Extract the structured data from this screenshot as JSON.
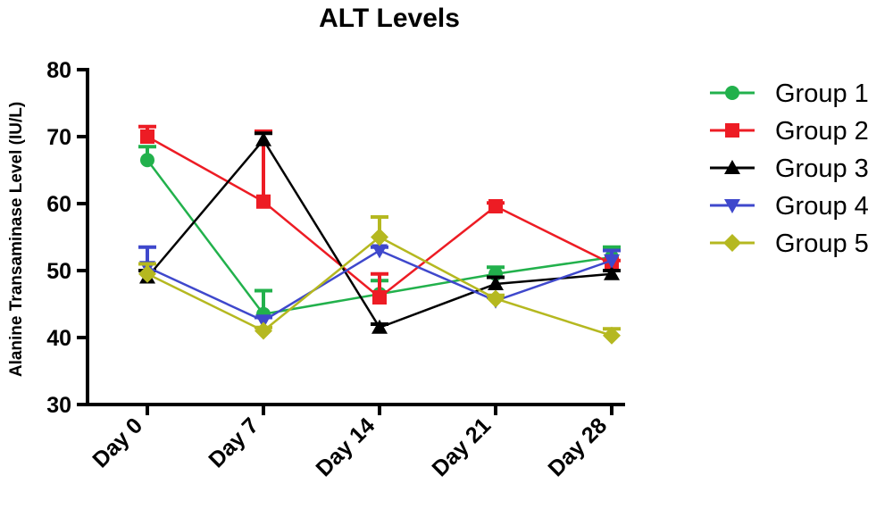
{
  "chart_data": {
    "type": "line",
    "title": "ALT Levels",
    "xlabel": "",
    "ylabel": "Alanine Transaminase Level (IU/L)",
    "ylim": [
      30,
      80
    ],
    "yticks": [
      "30",
      "40",
      "50",
      "60",
      "70",
      "80"
    ],
    "categories": [
      "Day 0",
      "Day 7",
      "Day 14",
      "Day 21",
      "Day 28"
    ],
    "legend_position": "right",
    "series": [
      {
        "name": "Group 1",
        "color": "#22b14c",
        "marker": "circle",
        "values": [
          66.5,
          43.5,
          46.5,
          49.5,
          52
        ],
        "errors": [
          2,
          3.5,
          2,
          1,
          1.5
        ]
      },
      {
        "name": "Group 2",
        "color": "#ed1c24",
        "marker": "square",
        "values": [
          70,
          60.3,
          46,
          59.6,
          51
        ],
        "errors": [
          1.5,
          10.5,
          3.5,
          0.5,
          0.5
        ]
      },
      {
        "name": "Group 3",
        "color": "#000000",
        "marker": "triangle-up",
        "values": [
          49,
          69.5,
          41.5,
          48,
          49.5
        ],
        "errors": [
          1,
          1,
          0.5,
          1,
          0.5
        ]
      },
      {
        "name": "Group 4",
        "color": "#3f48cc",
        "marker": "triangle-down",
        "values": [
          50.5,
          42.5,
          53,
          45.5,
          51.5
        ],
        "errors": [
          3,
          0.5,
          0.5,
          0.5,
          1.5
        ]
      },
      {
        "name": "Group 5",
        "color": "#b5b820",
        "marker": "diamond",
        "values": [
          49.5,
          41,
          55,
          45.8,
          40.3
        ],
        "errors": [
          1.5,
          0.5,
          3,
          0.5,
          1
        ]
      }
    ]
  }
}
